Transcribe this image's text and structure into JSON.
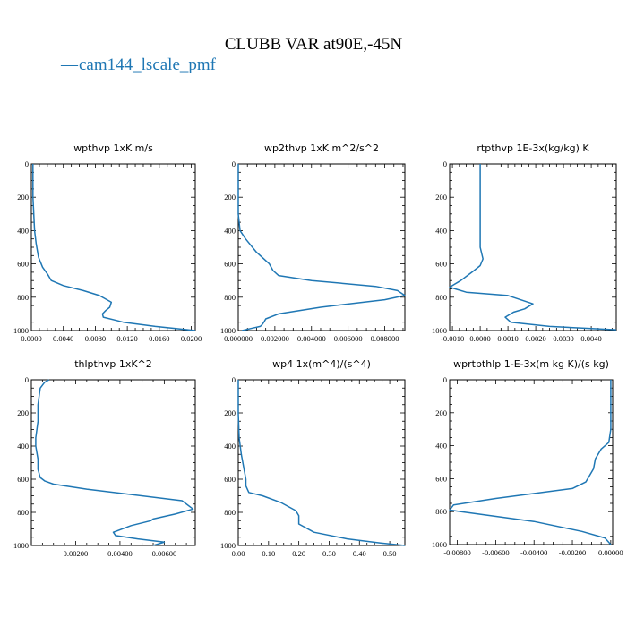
{
  "figure": {
    "title": "CLUBB VAR at90E,-45N",
    "legend": {
      "name": "cam144_lscale_pmf",
      "color": "#1f77b4",
      "symbol": "—"
    }
  },
  "chart_data": [
    {
      "type": "line",
      "title": "wpthvp  1xK m/s",
      "xlim": [
        0,
        0.0205
      ],
      "ylim": [
        1000,
        0
      ],
      "xticks": [
        0.0,
        0.004,
        0.008,
        0.012,
        0.016,
        0.02
      ],
      "xtick_labels": [
        "0.0000",
        "0.0040",
        "0.0080",
        "0.0120",
        "0.0160",
        "0.0200"
      ],
      "yticks": [
        0,
        200,
        400,
        600,
        800,
        1000
      ],
      "ytick_labels": [
        "0",
        "200",
        "400",
        "600",
        "800",
        "1000"
      ],
      "series": [
        {
          "color": "#1f77b4",
          "x": [
            0.0002,
            0.0002,
            0.0002,
            0.0003,
            0.0004,
            0.0006,
            0.0009,
            0.0014,
            0.002,
            0.0025,
            0.004,
            0.0065,
            0.0085,
            0.01,
            0.0098,
            0.0093,
            0.0089,
            0.009,
            0.0115,
            0.0155,
            0.0205
          ],
          "y": [
            0,
            100,
            200,
            300,
            400,
            480,
            560,
            620,
            660,
            700,
            730,
            760,
            790,
            830,
            860,
            880,
            900,
            920,
            950,
            975,
            1000
          ]
        }
      ]
    },
    {
      "type": "line",
      "title": "wp2thvp  1xK m^2/s^2",
      "xlim": [
        0,
        0.0091
      ],
      "ylim": [
        1000,
        0
      ],
      "xticks": [
        0.0,
        0.002,
        0.004,
        0.006,
        0.008
      ],
      "xtick_labels": [
        "0.000000",
        "0.002000",
        "0.004000",
        "0.006000",
        "0.008000"
      ],
      "yticks": [
        0,
        200,
        400,
        600,
        800,
        1000
      ],
      "ytick_labels": [
        "0",
        "200",
        "400",
        "600",
        "800",
        "1000"
      ],
      "series": [
        {
          "color": "#1f77b4",
          "x": [
            0.0,
            0.0,
            0.0001,
            0.0004,
            0.001,
            0.0017,
            0.0019,
            0.0022,
            0.004,
            0.0075,
            0.0087,
            0.0091,
            0.008,
            0.0045,
            0.0022,
            0.0015,
            0.0014,
            0.0013,
            0.0012,
            0.0008,
            0.0002
          ],
          "y": [
            0,
            300,
            400,
            450,
            530,
            600,
            640,
            670,
            700,
            735,
            760,
            790,
            815,
            860,
            900,
            930,
            950,
            965,
            975,
            985,
            1000
          ]
        }
      ]
    },
    {
      "type": "line",
      "title": "rtpthvp  1E-3x(kg/kg) K",
      "xlim": [
        -0.0011,
        0.0049
      ],
      "ylim": [
        1000,
        0
      ],
      "xticks": [
        -0.001,
        0.0,
        0.001,
        0.002,
        0.003,
        0.004
      ],
      "xtick_labels": [
        "-0.0010",
        "0.0000",
        "0.0010",
        "0.0020",
        "0.0030",
        "0.0040"
      ],
      "yticks": [
        0,
        200,
        400,
        600,
        800,
        1000
      ],
      "ytick_labels": [
        "0",
        "200",
        "400",
        "600",
        "800",
        "1000"
      ],
      "series": [
        {
          "color": "#1f77b4",
          "x": [
            0.0,
            0.0,
            0.0,
            0.0,
            0.0001,
            0.0,
            -0.0003,
            -0.0007,
            -0.0011,
            -0.0005,
            0.001,
            0.0019,
            0.0016,
            0.0012,
            0.0009,
            0.0011,
            0.0025,
            0.0049
          ],
          "y": [
            0,
            200,
            400,
            500,
            570,
            610,
            650,
            700,
            740,
            770,
            790,
            840,
            870,
            890,
            920,
            950,
            975,
            995
          ]
        }
      ]
    },
    {
      "type": "line",
      "title": "thlpthvp  1xK^2",
      "xlim": [
        0,
        0.0074
      ],
      "ylim": [
        1000,
        0
      ],
      "xticks": [
        0.002,
        0.004,
        0.006
      ],
      "xtick_labels": [
        "0.00200",
        "0.00400",
        "0.00600"
      ],
      "yticks": [
        0,
        200,
        400,
        600,
        800,
        1000
      ],
      "ytick_labels": [
        "0",
        "200",
        "400",
        "600",
        "800",
        "1000"
      ],
      "series": [
        {
          "color": "#1f77b4",
          "x": [
            0.0008,
            0.0006,
            0.0004,
            0.0003,
            0.0003,
            0.0002,
            0.0002,
            0.0003,
            0.0003,
            0.0004,
            0.0006,
            0.001,
            0.0025,
            0.0068,
            0.0073,
            0.0065,
            0.0055,
            0.0054,
            0.0045,
            0.0037,
            0.0038,
            0.0048,
            0.006,
            0.0055
          ],
          "y": [
            0,
            15,
            50,
            150,
            250,
            350,
            400,
            480,
            540,
            590,
            610,
            630,
            660,
            730,
            780,
            810,
            840,
            850,
            880,
            920,
            940,
            960,
            980,
            1000
          ]
        }
      ]
    },
    {
      "type": "line",
      "title": "wp4   1x(m^4)/(s^4)",
      "xlim": [
        0,
        0.55
      ],
      "ylim": [
        1000,
        0
      ],
      "xticks": [
        0.0,
        0.1,
        0.2,
        0.3,
        0.4,
        0.5
      ],
      "xtick_labels": [
        "0.00",
        "0.10",
        "0.20",
        "0.30",
        "0.40",
        "0.50"
      ],
      "yticks": [
        0,
        200,
        400,
        600,
        800,
        1000
      ],
      "ytick_labels": [
        "0",
        "200",
        "400",
        "600",
        "800",
        "1000"
      ],
      "series": [
        {
          "color": "#1f77b4",
          "x": [
            0.0,
            0.0,
            0.003,
            0.01,
            0.02,
            0.025,
            0.025,
            0.035,
            0.08,
            0.14,
            0.19,
            0.2,
            0.2,
            0.25,
            0.36,
            0.47,
            0.55
          ],
          "y": [
            0,
            200,
            350,
            450,
            550,
            600,
            640,
            680,
            700,
            740,
            790,
            820,
            870,
            920,
            960,
            985,
            1000
          ]
        }
      ]
    },
    {
      "type": "line",
      "title": "wprtpthlp   1-E-3x(m kg K)/(s kg)",
      "xlim": [
        -0.0084,
        0.0001
      ],
      "ylim": [
        1000,
        0
      ],
      "xticks": [
        -0.008,
        -0.006,
        -0.004,
        -0.002,
        0.0
      ],
      "xtick_labels": [
        "-0.00800",
        "-0.00600",
        "-0.00400",
        "-0.00200",
        "0.00000"
      ],
      "yticks": [
        0,
        200,
        400,
        600,
        800,
        1000
      ],
      "ytick_labels": [
        "0",
        "200",
        "400",
        "600",
        "800",
        "1000"
      ],
      "series": [
        {
          "color": "#1f77b4",
          "x": [
            0.0,
            0.0,
            0.0,
            -0.0001,
            -0.0005,
            -0.0008,
            -0.0009,
            -0.0013,
            -0.002,
            -0.006,
            -0.0082,
            -0.0084,
            -0.0078,
            -0.004,
            -0.0015,
            -0.0003,
            0.0
          ],
          "y": [
            0,
            200,
            300,
            380,
            420,
            480,
            540,
            620,
            660,
            720,
            760,
            790,
            800,
            860,
            920,
            960,
            1000
          ]
        }
      ]
    }
  ]
}
